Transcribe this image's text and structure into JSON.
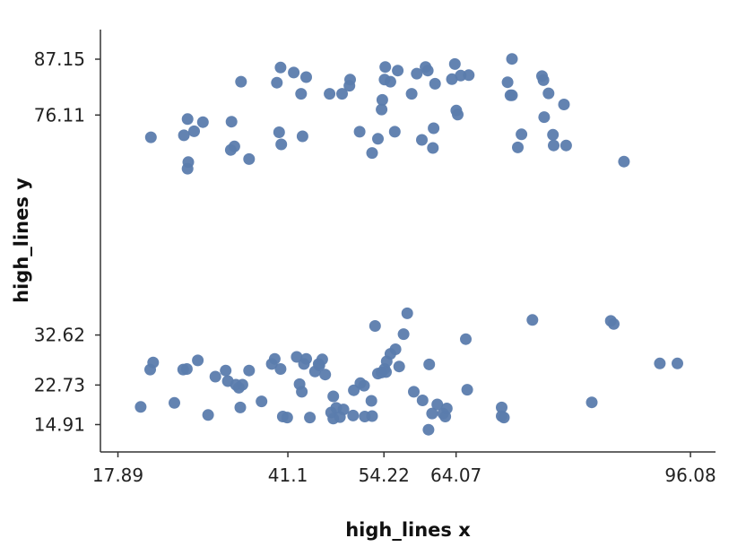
{
  "chart_data": {
    "type": "scatter",
    "title": "",
    "xlabel": "high_lines x",
    "ylabel": "high_lines y",
    "xlim": [
      15.5,
      99.5
    ],
    "ylim": [
      9.5,
      93.0
    ],
    "xticks": [
      17.89,
      41.1,
      54.22,
      64.07,
      96.08
    ],
    "xtick_labels": [
      "17.89",
      "41.1",
      "54.22",
      "64.07",
      "96.08"
    ],
    "yticks": [
      87.15,
      76.11,
      32.62,
      22.73,
      14.91
    ],
    "ytick_labels": [
      "87.15",
      "76.11",
      "32.62",
      "22.73",
      "14.91"
    ],
    "grid": false,
    "color": "#5b7cad",
    "points": [
      [
        22.4,
        71.7
      ],
      [
        26.9,
        72.1
      ],
      [
        27.4,
        75.3
      ],
      [
        28.3,
        72.9
      ],
      [
        29.5,
        74.7
      ],
      [
        27.5,
        66.8
      ],
      [
        27.4,
        65.5
      ],
      [
        33.3,
        69.2
      ],
      [
        33.8,
        69.9
      ],
      [
        33.4,
        74.8
      ],
      [
        35.8,
        67.4
      ],
      [
        34.7,
        82.7
      ],
      [
        39.6,
        82.5
      ],
      [
        39.9,
        72.7
      ],
      [
        40.2,
        70.3
      ],
      [
        40.1,
        85.5
      ],
      [
        41.9,
        84.5
      ],
      [
        42.9,
        80.3
      ],
      [
        43.6,
        83.6
      ],
      [
        43.1,
        71.9
      ],
      [
        46.8,
        80.3
      ],
      [
        48.5,
        80.3
      ],
      [
        49.5,
        81.9
      ],
      [
        49.6,
        83.1
      ],
      [
        50.9,
        72.8
      ],
      [
        52.6,
        68.6
      ],
      [
        53.4,
        71.4
      ],
      [
        53.9,
        77.2
      ],
      [
        54.0,
        79.1
      ],
      [
        54.3,
        83.1
      ],
      [
        54.4,
        85.6
      ],
      [
        55.1,
        82.7
      ],
      [
        55.7,
        72.8
      ],
      [
        56.1,
        84.9
      ],
      [
        58.0,
        80.3
      ],
      [
        58.7,
        84.3
      ],
      [
        59.4,
        71.2
      ],
      [
        59.9,
        85.6
      ],
      [
        60.2,
        84.9
      ],
      [
        60.9,
        69.6
      ],
      [
        61.0,
        73.5
      ],
      [
        61.2,
        82.3
      ],
      [
        63.5,
        83.2
      ],
      [
        63.9,
        86.2
      ],
      [
        64.1,
        77.0
      ],
      [
        64.3,
        76.2
      ],
      [
        64.7,
        83.9
      ],
      [
        65.8,
        84.0
      ],
      [
        71.1,
        82.6
      ],
      [
        71.5,
        80.0
      ],
      [
        71.7,
        80.0
      ],
      [
        71.7,
        87.2
      ],
      [
        72.5,
        69.7
      ],
      [
        73.0,
        72.3
      ],
      [
        75.8,
        83.8
      ],
      [
        76.0,
        83.0
      ],
      [
        76.1,
        75.7
      ],
      [
        76.7,
        80.4
      ],
      [
        77.3,
        72.2
      ],
      [
        77.4,
        70.1
      ],
      [
        78.8,
        78.2
      ],
      [
        79.1,
        70.1
      ],
      [
        87.0,
        66.9
      ],
      [
        21.0,
        18.4
      ],
      [
        22.3,
        25.8
      ],
      [
        22.7,
        27.2
      ],
      [
        25.6,
        19.2
      ],
      [
        26.8,
        25.8
      ],
      [
        27.3,
        25.9
      ],
      [
        28.8,
        27.6
      ],
      [
        30.2,
        16.8
      ],
      [
        31.2,
        24.4
      ],
      [
        32.6,
        25.6
      ],
      [
        32.9,
        23.5
      ],
      [
        34.0,
        22.8
      ],
      [
        34.4,
        22.2
      ],
      [
        34.6,
        18.3
      ],
      [
        34.9,
        22.8
      ],
      [
        35.8,
        25.6
      ],
      [
        37.5,
        19.5
      ],
      [
        38.9,
        26.9
      ],
      [
        39.3,
        27.9
      ],
      [
        40.1,
        25.9
      ],
      [
        40.4,
        16.5
      ],
      [
        41.0,
        16.3
      ],
      [
        42.3,
        28.3
      ],
      [
        42.7,
        22.9
      ],
      [
        43.0,
        21.4
      ],
      [
        43.3,
        26.9
      ],
      [
        43.6,
        27.9
      ],
      [
        44.1,
        16.3
      ],
      [
        44.8,
        25.4
      ],
      [
        45.3,
        26.9
      ],
      [
        45.4,
        26.6
      ],
      [
        45.8,
        27.8
      ],
      [
        46.2,
        24.8
      ],
      [
        47.0,
        17.3
      ],
      [
        47.3,
        20.5
      ],
      [
        47.3,
        16.1
      ],
      [
        47.7,
        18.2
      ],
      [
        48.2,
        16.4
      ],
      [
        48.7,
        17.9
      ],
      [
        50.0,
        16.7
      ],
      [
        50.1,
        21.7
      ],
      [
        51.0,
        23.1
      ],
      [
        51.5,
        22.6
      ],
      [
        51.6,
        16.5
      ],
      [
        52.5,
        19.6
      ],
      [
        52.6,
        16.6
      ],
      [
        53.0,
        34.4
      ],
      [
        53.4,
        25.0
      ],
      [
        53.9,
        25.2
      ],
      [
        54.3,
        25.9
      ],
      [
        54.5,
        25.3
      ],
      [
        54.6,
        27.4
      ],
      [
        55.1,
        28.9
      ],
      [
        55.8,
        29.8
      ],
      [
        56.3,
        26.4
      ],
      [
        56.9,
        32.8
      ],
      [
        57.4,
        36.9
      ],
      [
        58.3,
        21.4
      ],
      [
        59.5,
        19.7
      ],
      [
        60.3,
        13.9
      ],
      [
        60.4,
        26.8
      ],
      [
        60.8,
        17.1
      ],
      [
        61.5,
        18.9
      ],
      [
        62.3,
        17.1
      ],
      [
        62.6,
        16.5
      ],
      [
        62.8,
        18.1
      ],
      [
        65.4,
        31.8
      ],
      [
        65.6,
        21.8
      ],
      [
        70.3,
        16.6
      ],
      [
        70.3,
        18.3
      ],
      [
        70.6,
        16.3
      ],
      [
        74.5,
        35.6
      ],
      [
        82.6,
        19.3
      ],
      [
        85.2,
        35.4
      ],
      [
        85.6,
        34.8
      ],
      [
        91.9,
        27.0
      ],
      [
        94.3,
        27.0
      ]
    ]
  }
}
